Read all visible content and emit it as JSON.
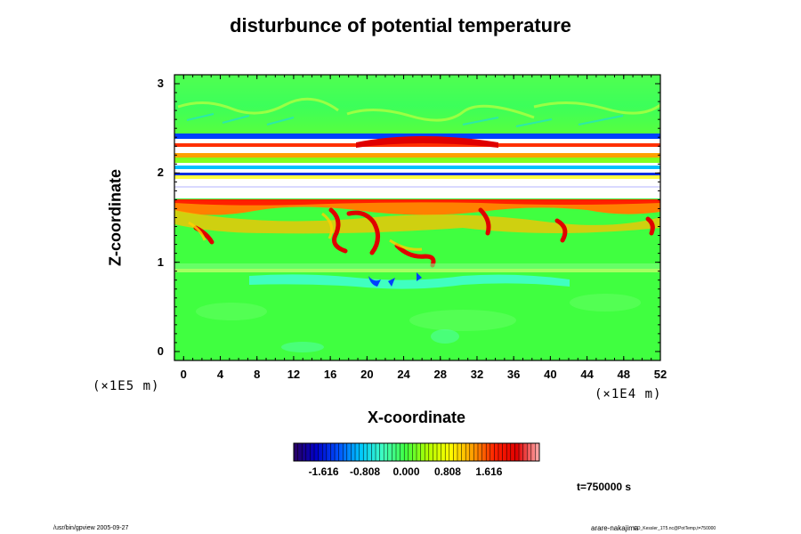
{
  "chart_data": {
    "type": "heatmap",
    "title": "disturbunce of potential temperature",
    "xlabel": "X-coordinate",
    "ylabel": "Z-coordinate",
    "x_scale_note": "(×1E4 m)",
    "y_scale_note": "(×1E5 m)",
    "xlim": [
      -1,
      52
    ],
    "ylim": [
      -0.1,
      3.1
    ],
    "x_ticks": [
      "0",
      "4",
      "8",
      "12",
      "16",
      "20",
      "24",
      "28",
      "32",
      "36",
      "40",
      "44",
      "48",
      "52"
    ],
    "y_ticks": [
      "0",
      "1",
      "2",
      "3"
    ],
    "colorbar": {
      "ticks": [
        "-1.616",
        "-0.808",
        "0.000",
        "0.808",
        "1.616"
      ],
      "tick_values": [
        -1.616,
        -0.808,
        0.0,
        0.808,
        1.616
      ],
      "range": [
        -2.2,
        2.6
      ],
      "colormap": [
        "#2a0060",
        "#0000c8",
        "#0050ff",
        "#00c8ff",
        "#40ffc0",
        "#40ff40",
        "#b0ff00",
        "#ffff00",
        "#ffa000",
        "#ff2000",
        "#e00000",
        "#ffb0b0"
      ]
    },
    "annotation": "t=750000 s",
    "bands": [
      {
        "z": [
          0.0,
          0.9
        ],
        "value": 0.15,
        "note": "lower layer, mostly green"
      },
      {
        "z": [
          0.9,
          1.0
        ],
        "value": -0.3,
        "note": "cyan band"
      },
      {
        "z": [
          1.0,
          1.6
        ],
        "value": 0.35,
        "note": "green with red/orange eddies"
      },
      {
        "z": [
          1.6,
          1.72
        ],
        "value": 1.3,
        "note": "orange/red interface"
      },
      {
        "z": [
          1.72,
          2.0
        ],
        "value": null,
        "note": "white out-of-range band"
      },
      {
        "z": [
          2.0,
          2.45
        ],
        "value": null,
        "note": "banded multicolor layer"
      },
      {
        "z": [
          2.45,
          3.0
        ],
        "value": 0.1,
        "note": "upper layer, green with wave streaks"
      }
    ]
  },
  "footer": {
    "left": "/usr/bin/gpview 2005-09-27",
    "right_user": "arare-nakajima",
    "right_file": "CO_Kessler_1T5.nc@PotTemp,t=750000"
  },
  "colors": {
    "background": "#ffffff",
    "field_green": "#40ff40",
    "field_orange": "#ff8000",
    "field_red": "#e00000"
  }
}
